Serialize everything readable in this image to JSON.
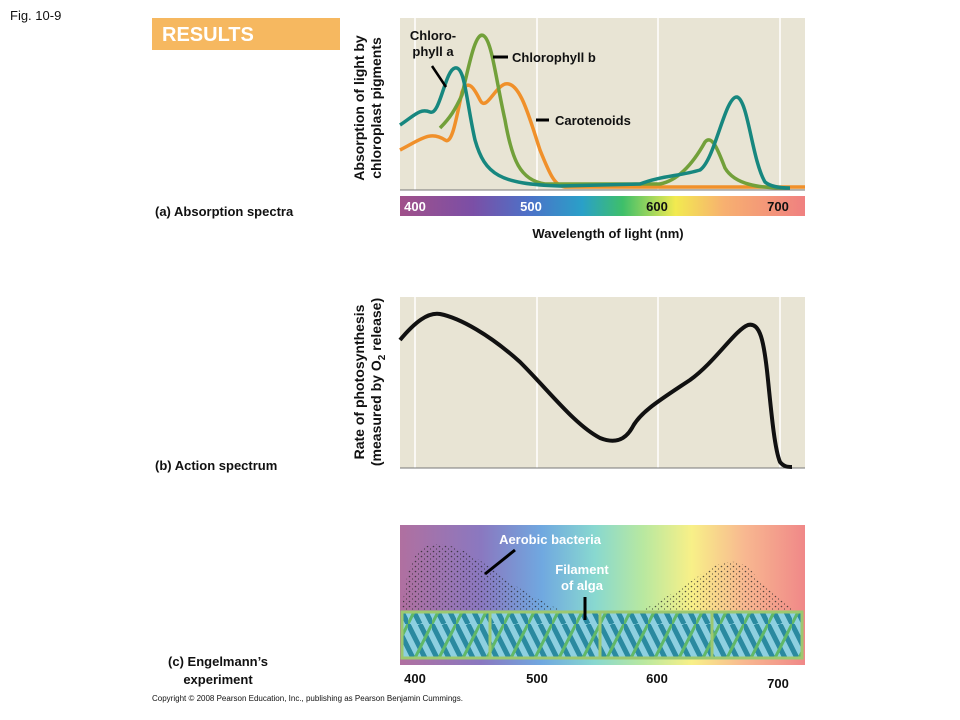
{
  "figure_label": "Fig. 10-9",
  "header": "RESULTS",
  "panel_a": {
    "caption": "(a) Absorption spectra",
    "y_label": [
      "Absorption of light by",
      "chloroplast pigments"
    ],
    "legend": {
      "chl_a": [
        "Chloro-",
        "phyll a"
      ],
      "chl_b": "Chlorophyll b",
      "carotenoids": "Carotenoids"
    },
    "ticks": [
      "400",
      "500",
      "600",
      "700"
    ],
    "x_label": "Wavelength of light (nm)"
  },
  "panel_b": {
    "caption": "(b) Action spectrum",
    "y_label": [
      "Rate of photosynthesis",
      "(measured by O",
      "2",
      " release)"
    ]
  },
  "panel_c": {
    "caption": [
      "(c) Engelmann’s",
      "experiment"
    ],
    "bacteria": "Aerobic bacteria",
    "filament": [
      "Filament",
      "of alga"
    ],
    "ticks": [
      "400",
      "500",
      "600",
      "700"
    ]
  },
  "copyright": "Copyright © 2008 Pearson Education, Inc., publishing as Pearson Benjamin Cummings."
}
